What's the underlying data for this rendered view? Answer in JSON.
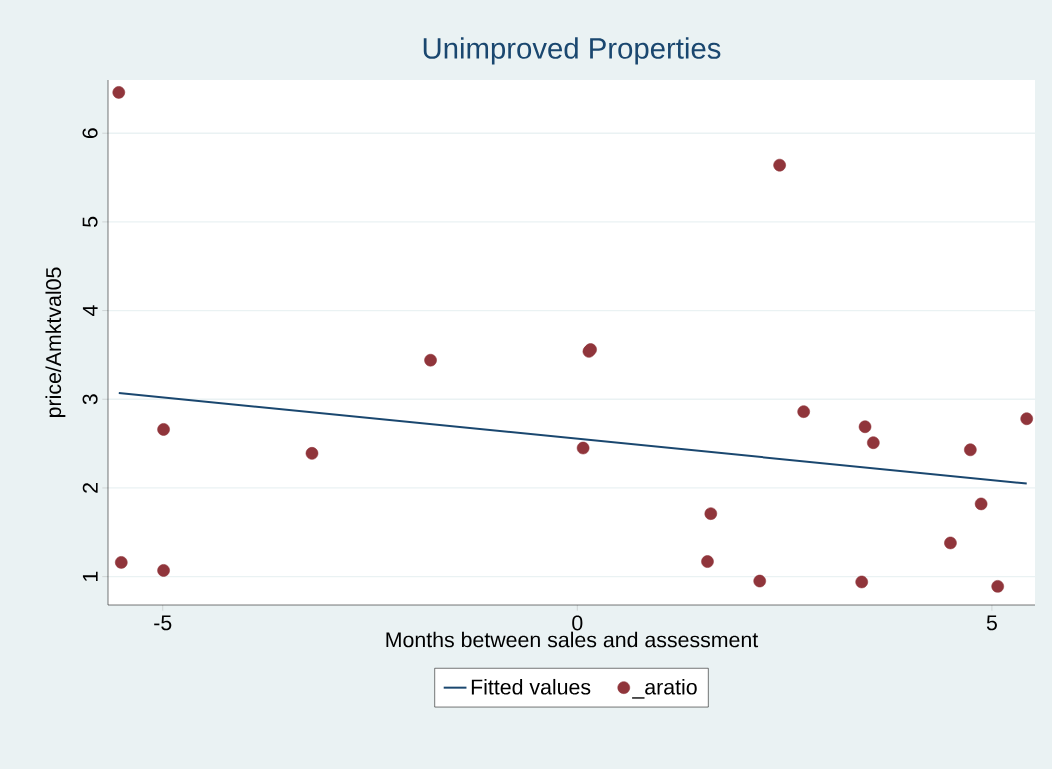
{
  "chart_data": {
    "type": "scatter",
    "title": "Unimproved Properties",
    "xlabel": "Months between sales and assessment",
    "ylabel": "price/Amktval05",
    "xlim": [
      -5.66,
      5.52
    ],
    "ylim": [
      0.68,
      6.6
    ],
    "xticks": [
      -5,
      0,
      5
    ],
    "yticks": [
      1,
      2,
      3,
      4,
      5,
      6
    ],
    "grid": "y",
    "legend": "bottom",
    "series": [
      {
        "name": "Fitted values",
        "type": "line",
        "color": "#1a476f",
        "marker": "none",
        "x": [
          -5.53,
          5.42
        ],
        "values": [
          3.07,
          2.05
        ]
      },
      {
        "name": "_aratio",
        "color": "#90353b",
        "marker": "circle",
        "x": [
          -5.53,
          -5.5,
          -4.99,
          -4.99,
          -3.2,
          -1.77,
          0.07,
          0.14,
          0.16,
          1.57,
          1.61,
          2.2,
          2.44,
          2.73,
          3.43,
          3.47,
          3.57,
          4.5,
          4.74,
          4.87,
          5.07,
          5.42
        ],
        "values": [
          6.46,
          1.16,
          2.66,
          1.07,
          2.39,
          3.44,
          2.45,
          3.54,
          3.56,
          1.17,
          1.71,
          0.95,
          5.64,
          2.86,
          0.94,
          2.69,
          2.51,
          1.38,
          2.43,
          1.82,
          0.89,
          2.78
        ]
      }
    ]
  }
}
